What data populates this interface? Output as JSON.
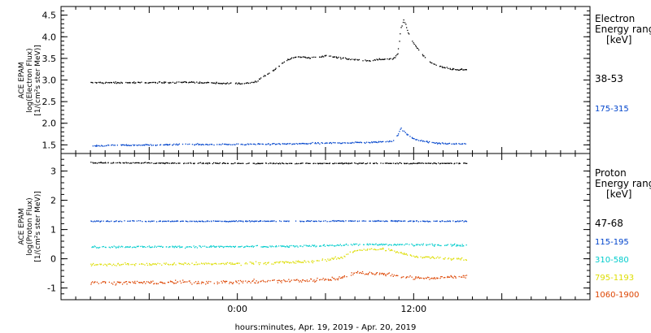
{
  "chart_data": [
    {
      "type": "scatter",
      "ylabel_lines": [
        "ACE EPAM",
        "log(Electron Flux)",
        "[1/(cm²s ster MeV)]"
      ],
      "ylim": [
        1.3,
        4.7
      ],
      "yticks": [
        1.5,
        2.0,
        2.5,
        3.0,
        3.5,
        4.0,
        4.5
      ],
      "ytick_labels": [
        "1.5",
        "2.0",
        "2.5",
        "3.0",
        "3.5",
        "4.0",
        "4.5"
      ],
      "legend_title_lines": [
        "Electron",
        "Energy ranges",
        "[keV]"
      ],
      "series": [
        {
          "name": "38-53",
          "color": "#000000",
          "points": [
            [
              -10,
              2.95
            ],
            [
              -6,
              2.95
            ],
            [
              -3,
              2.96
            ],
            [
              -1,
              2.93
            ],
            [
              0.5,
              2.93
            ],
            [
              1.2,
              2.97
            ],
            [
              1.8,
              3.1
            ],
            [
              2.5,
              3.25
            ],
            [
              3.2,
              3.45
            ],
            [
              4.0,
              3.55
            ],
            [
              5.0,
              3.52
            ],
            [
              6.0,
              3.57
            ],
            [
              7.0,
              3.52
            ],
            [
              8.0,
              3.48
            ],
            [
              9.0,
              3.46
            ],
            [
              10.0,
              3.5
            ],
            [
              10.6,
              3.5
            ],
            [
              10.9,
              3.62
            ],
            [
              11.1,
              4.2
            ],
            [
              11.3,
              4.4
            ],
            [
              11.6,
              4.1
            ],
            [
              12.0,
              3.85
            ],
            [
              12.5,
              3.62
            ],
            [
              13.0,
              3.45
            ],
            [
              13.5,
              3.35
            ],
            [
              14.0,
              3.3
            ],
            [
              14.5,
              3.27
            ],
            [
              15.0,
              3.25
            ],
            [
              15.6,
              3.25
            ]
          ]
        },
        {
          "name": "175-315",
          "color": "#0044cc",
          "points": [
            [
              -10,
              1.49
            ],
            [
              -6,
              1.51
            ],
            [
              -3,
              1.52
            ],
            [
              0,
              1.52
            ],
            [
              3,
              1.53
            ],
            [
              6,
              1.55
            ],
            [
              9,
              1.57
            ],
            [
              10.5,
              1.6
            ],
            [
              10.9,
              1.75
            ],
            [
              11.1,
              1.9
            ],
            [
              11.5,
              1.75
            ],
            [
              12.0,
              1.65
            ],
            [
              13.0,
              1.57
            ],
            [
              14.0,
              1.54
            ],
            [
              15.6,
              1.53
            ]
          ]
        }
      ]
    },
    {
      "type": "scatter",
      "ylabel_lines": [
        "ACE EPAM",
        "log(Proton Flux)",
        "[1/(cm²s ster MeV)]"
      ],
      "ylim": [
        -1.4,
        3.6
      ],
      "yticks": [
        -1,
        0,
        1,
        2,
        3
      ],
      "ytick_labels": [
        "-1",
        "0",
        "1",
        "2",
        "3"
      ],
      "legend_title_lines": [
        "Proton",
        "Energy ranges",
        "[keV]"
      ],
      "series": [
        {
          "name": "47-68",
          "color": "#000000",
          "points": [
            [
              -10,
              3.3
            ],
            [
              0,
              3.28
            ],
            [
              8,
              3.28
            ],
            [
              15.6,
              3.28
            ]
          ]
        },
        {
          "name": "115-195",
          "color": "#0044cc",
          "points": [
            [
              -10,
              1.3
            ],
            [
              0,
              1.3
            ],
            [
              8,
              1.31
            ],
            [
              15.6,
              1.3
            ]
          ]
        },
        {
          "name": "310-580",
          "color": "#00cccc",
          "points": [
            [
              -10,
              0.42
            ],
            [
              0,
              0.43
            ],
            [
              5,
              0.45
            ],
            [
              8,
              0.5
            ],
            [
              11,
              0.5
            ],
            [
              15.6,
              0.48
            ]
          ]
        },
        {
          "name": "795-1193",
          "color": "#dddd00",
          "points": [
            [
              -10,
              -0.18
            ],
            [
              0,
              -0.15
            ],
            [
              5,
              -0.08
            ],
            [
              7,
              0.05
            ],
            [
              8,
              0.3
            ],
            [
              10,
              0.35
            ],
            [
              12,
              0.1
            ],
            [
              15.6,
              0.0
            ]
          ]
        },
        {
          "name": "1060-1900",
          "color": "#dd4400",
          "points": [
            [
              -10,
              -0.8
            ],
            [
              0,
              -0.78
            ],
            [
              5,
              -0.72
            ],
            [
              7,
              -0.65
            ],
            [
              8,
              -0.45
            ],
            [
              10,
              -0.5
            ],
            [
              12,
              -0.65
            ],
            [
              15.6,
              -0.6
            ]
          ]
        }
      ]
    }
  ],
  "x_axis": {
    "label": "hours:minutes, Apr. 19, 2019 - Apr. 20, 2019",
    "range": [
      -12,
      24
    ],
    "tick_labels": [
      {
        "value": 0,
        "label": "0:00"
      },
      {
        "value": 12,
        "label": "12:00"
      }
    ],
    "minor_step_hours": 1,
    "major_step_hours": 6
  }
}
